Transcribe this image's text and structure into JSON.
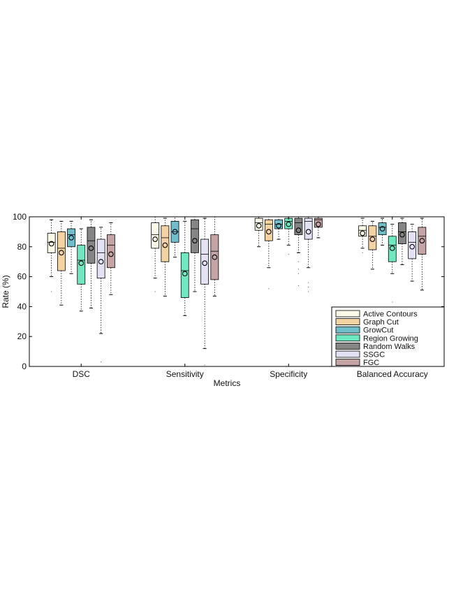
{
  "chart_data": {
    "type": "box",
    "title": "",
    "xlabel": "Metrics",
    "ylabel": "Rate (%)",
    "ylim": [
      0,
      100
    ],
    "yticks": [
      "0",
      "20",
      "40",
      "60",
      "80",
      "100"
    ],
    "grid": false,
    "legend_position": "bottom-right",
    "categories": [
      "DSC",
      "Sensitivity",
      "Specificity",
      "Balanced Accuracy"
    ],
    "series": [
      {
        "name": "Active Contours",
        "color": "#fbf9e8",
        "boxes": [
          {
            "whisker_low": 60,
            "q1": 76,
            "median": 83,
            "q3": 89,
            "whisker_high": 98,
            "mean": 82,
            "outliers": [
              50
            ]
          },
          {
            "whisker_low": 59,
            "q1": 79,
            "median": 88,
            "q3": 96,
            "whisker_high": 100,
            "mean": 85,
            "outliers": [
              50
            ]
          },
          {
            "whisker_low": 80,
            "q1": 91,
            "median": 96,
            "q3": 99,
            "whisker_high": 100,
            "mean": 94,
            "outliers": []
          },
          {
            "whisker_low": 79,
            "q1": 87,
            "median": 91,
            "q3": 94,
            "whisker_high": 99,
            "mean": 89,
            "outliers": [
              76
            ]
          }
        ]
      },
      {
        "name": "Graph Cut",
        "color": "#f4d3a2",
        "boxes": [
          {
            "whisker_low": 41,
            "q1": 64,
            "median": 79,
            "q3": 90,
            "whisker_high": 97,
            "mean": 76,
            "outliers": []
          },
          {
            "whisker_low": 47,
            "q1": 70,
            "median": 86,
            "q3": 94,
            "whisker_high": 99,
            "mean": 81,
            "outliers": []
          },
          {
            "whisker_low": 66,
            "q1": 84,
            "median": 95,
            "q3": 98,
            "whisker_high": 100,
            "mean": 90,
            "outliers": [
              52
            ]
          },
          {
            "whisker_low": 65,
            "q1": 78,
            "median": 87,
            "q3": 94,
            "whisker_high": 97,
            "mean": 85,
            "outliers": []
          }
        ]
      },
      {
        "name": "GrowCut",
        "color": "#6fbfcb",
        "boxes": [
          {
            "whisker_low": 62,
            "q1": 80,
            "median": 88,
            "q3": 92,
            "whisker_high": 97,
            "mean": 86,
            "outliers": []
          },
          {
            "whisker_low": 73,
            "q1": 83,
            "median": 90,
            "q3": 97,
            "whisker_high": 100,
            "mean": 90,
            "outliers": []
          },
          {
            "whisker_low": 85,
            "q1": 92,
            "median": 95,
            "q3": 98,
            "whisker_high": 100,
            "mean": 94,
            "outliers": []
          },
          {
            "whisker_low": 81,
            "q1": 88,
            "median": 93,
            "q3": 96,
            "whisker_high": 99,
            "mean": 92,
            "outliers": []
          }
        ]
      },
      {
        "name": "Region Growing",
        "color": "#6ee8c0",
        "boxes": [
          {
            "whisker_low": 37,
            "q1": 55,
            "median": 71,
            "q3": 81,
            "whisker_high": 92,
            "mean": 69,
            "outliers": []
          },
          {
            "whisker_low": 34,
            "q1": 46,
            "median": 64,
            "q3": 76,
            "whisker_high": 97,
            "mean": 62,
            "outliers": []
          },
          {
            "whisker_low": 81,
            "q1": 92,
            "median": 97,
            "q3": 99,
            "whisker_high": 100,
            "mean": 95,
            "outliers": [
              75
            ]
          },
          {
            "whisker_low": 62,
            "q1": 70,
            "median": 81,
            "q3": 87,
            "whisker_high": 95,
            "mean": 79,
            "outliers": [
              43
            ]
          }
        ]
      },
      {
        "name": "Random Walks",
        "color": "#858585",
        "boxes": [
          {
            "whisker_low": 39,
            "q1": 69,
            "median": 84,
            "q3": 93,
            "whisker_high": 98,
            "mean": 79,
            "outliers": []
          },
          {
            "whisker_low": 50,
            "q1": 76,
            "median": 92,
            "q3": 98,
            "whisker_high": 100,
            "mean": 84,
            "outliers": []
          },
          {
            "whisker_low": 76,
            "q1": 88,
            "median": 96,
            "q3": 99,
            "whisker_high": 100,
            "mean": 91,
            "outliers": [
              54,
              62,
              65,
              70
            ]
          },
          {
            "whisker_low": 68,
            "q1": 82,
            "median": 90,
            "q3": 96,
            "whisker_high": 99,
            "mean": 88,
            "outliers": []
          }
        ]
      },
      {
        "name": "SSGC",
        "color": "#e3e2f5",
        "boxes": [
          {
            "whisker_low": 22,
            "q1": 59,
            "median": 76,
            "q3": 85,
            "whisker_high": 93,
            "mean": 70,
            "outliers": [
              3
            ]
          },
          {
            "whisker_low": 12,
            "q1": 55,
            "median": 75,
            "q3": 85,
            "whisker_high": 99,
            "mean": 69,
            "outliers": [
              1
            ]
          },
          {
            "whisker_low": 66,
            "q1": 85,
            "median": 97,
            "q3": 99,
            "whisker_high": 100,
            "mean": 90,
            "outliers": [
              50,
              53,
              56
            ]
          },
          {
            "whisker_low": 57,
            "q1": 72,
            "median": 83,
            "q3": 90,
            "whisker_high": 95,
            "mean": 80,
            "outliers": []
          }
        ]
      },
      {
        "name": "FGC",
        "color": "#c4a4a4",
        "boxes": [
          {
            "whisker_low": 48,
            "q1": 66,
            "median": 81,
            "q3": 88,
            "whisker_high": 96,
            "mean": 75,
            "outliers": []
          },
          {
            "whisker_low": 47,
            "q1": 58,
            "median": 77,
            "q3": 88,
            "whisker_high": 100,
            "mean": 73,
            "outliers": []
          },
          {
            "whisker_low": 86,
            "q1": 93,
            "median": 98,
            "q3": 99,
            "whisker_high": 100,
            "mean": 95,
            "outliers": []
          },
          {
            "whisker_low": 51,
            "q1": 75,
            "median": 87,
            "q3": 93,
            "whisker_high": 99,
            "mean": 84,
            "outliers": []
          }
        ]
      }
    ]
  }
}
